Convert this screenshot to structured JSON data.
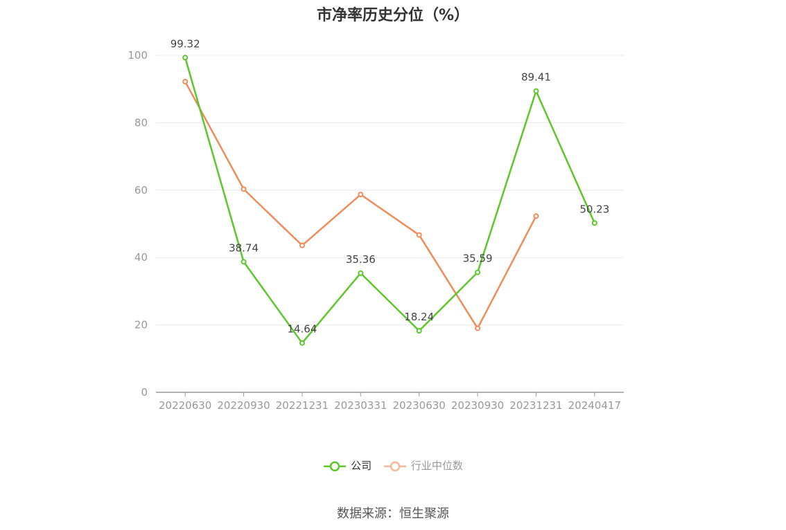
{
  "chart_data": {
    "type": "line",
    "title": "市净率历史分位（%）",
    "categories": [
      "20220630",
      "20220930",
      "20221231",
      "20230331",
      "20230630",
      "20230930",
      "20231231",
      "20240417"
    ],
    "ylim": [
      0,
      100
    ],
    "yticks": [
      0,
      20,
      40,
      60,
      80,
      100
    ],
    "grid": true,
    "legend_position": "bottom",
    "series": [
      {
        "name": "公司",
        "color": "#5cc72a",
        "values": [
          99.32,
          38.74,
          14.64,
          35.36,
          18.24,
          35.59,
          89.41,
          50.23
        ],
        "labels": [
          "99.32",
          "38.74",
          "14.64",
          "35.36",
          "18.24",
          "35.59",
          "89.41",
          "50.23"
        ]
      },
      {
        "name": "行业中位数",
        "color": "#f08c5a",
        "legend_color": "#f8b89a",
        "values": [
          92.2,
          60.3,
          43.6,
          58.7,
          46.7,
          19.0,
          52.3,
          null
        ]
      }
    ]
  },
  "source": "数据来源：恒生聚源"
}
